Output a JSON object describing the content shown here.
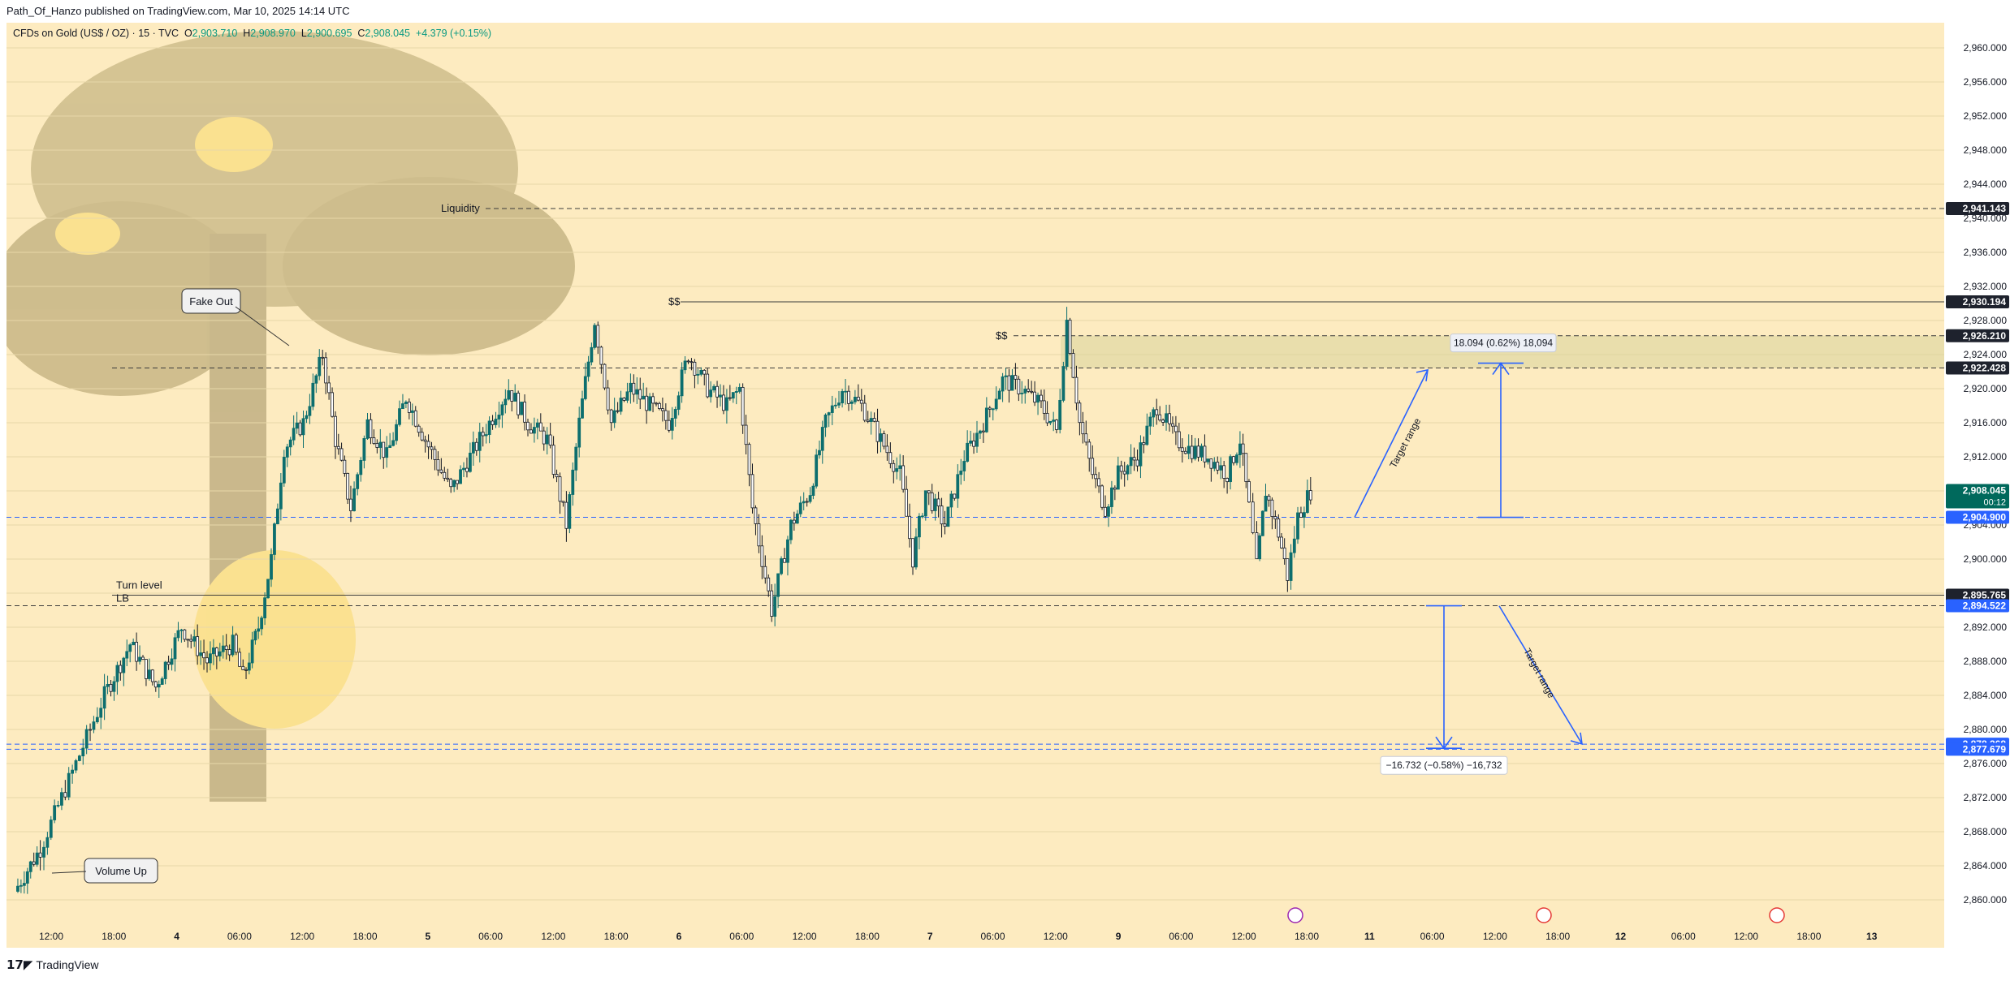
{
  "header": {
    "published": "Path_Of_Hanzo published on TradingView.com, Mar 10, 2025 14:14 UTC"
  },
  "symbol": {
    "name": "CFDs on Gold (US$ / OZ) · 15 · TVC",
    "open_label": "O",
    "open": "2,903.710",
    "high_label": "H",
    "high": "2,908.970",
    "low_label": "L",
    "low": "2,900.695",
    "close_label": "C",
    "close": "2,908.045",
    "change": "+4.379 (+0.15%)"
  },
  "colors": {
    "background": "#fdebc0",
    "up": "#0d6e6e",
    "down": "#131722",
    "accent_blue": "#2962ff",
    "last_price": "#00695c"
  },
  "footer": {
    "brand": "TradingView"
  },
  "chart_data": {
    "type": "candlestick",
    "y_axis": {
      "min": 2858,
      "max": 2962,
      "ticks": [
        "2,960.000",
        "2,956.000",
        "2,952.000",
        "2,948.000",
        "2,944.000",
        "2,940.000",
        "2,936.000",
        "2,932.000",
        "2,928.000",
        "2,924.000",
        "2,920.000",
        "2,916.000",
        "2,912.000",
        "2,908.000",
        "2,904.000",
        "2,900.000",
        "2,896.000",
        "2,892.000",
        "2,888.000",
        "2,884.000",
        "2,880.000",
        "2,876.000",
        "2,872.000",
        "2,868.000",
        "2,864.000",
        "2,860.000"
      ],
      "tick_values": [
        2960,
        2956,
        2952,
        2948,
        2944,
        2940,
        2936,
        2932,
        2928,
        2924,
        2920,
        2916,
        2912,
        2908,
        2904,
        2900,
        2896,
        2892,
        2888,
        2884,
        2880,
        2876,
        2872,
        2868,
        2864,
        2860
      ]
    },
    "x_axis": {
      "ticks": [
        "12:00",
        "18:00",
        "4",
        "06:00",
        "12:00",
        "18:00",
        "5",
        "06:00",
        "12:00",
        "18:00",
        "6",
        "06:00",
        "12:00",
        "18:00",
        "7",
        "06:00",
        "12:00",
        "9",
        "06:00",
        "12:00",
        "18:00",
        "11",
        "06:00",
        "12:00",
        "18:00",
        "12",
        "06:00",
        "12:00",
        "18:00",
        "13"
      ]
    },
    "price_labels": [
      {
        "text": "2,941.143",
        "value": 2941.143,
        "style": "dark"
      },
      {
        "text": "2,930.194",
        "value": 2930.194,
        "style": "dark"
      },
      {
        "text": "2,926.210",
        "value": 2926.21,
        "style": "dark"
      },
      {
        "text": "2,922.428",
        "value": 2922.428,
        "style": "dark"
      },
      {
        "text": "2,908.045",
        "value": 2908.045,
        "style": "last",
        "countdown": "00:12"
      },
      {
        "text": "2,904.900",
        "value": 2904.9,
        "style": "blue"
      },
      {
        "text": "2,895.765",
        "value": 2895.765,
        "style": "dark"
      },
      {
        "text": "2,894.522",
        "value": 2894.522,
        "style": "blue"
      },
      {
        "text": "2,878.268",
        "value": 2878.268,
        "style": "blue"
      },
      {
        "text": "2,877.679",
        "value": 2877.679,
        "style": "blue"
      }
    ],
    "levels": [
      {
        "name": "Liquidity",
        "value": 2941.143,
        "style": "dashed"
      },
      {
        "name": "$$",
        "value": 2930.194,
        "style": "solid"
      },
      {
        "name": "$$",
        "value": 2926.21,
        "style": "dashed"
      },
      {
        "name": "",
        "value": 2922.428,
        "style": "dashed"
      },
      {
        "name": "",
        "value": 2904.9,
        "style": "dashed-blue"
      },
      {
        "name": "Turn level",
        "value": 2895.765,
        "style": "solid"
      },
      {
        "name": "LB",
        "value": 2894.522,
        "style": "dashed"
      },
      {
        "name": "",
        "value": 2878.268,
        "style": "dashed-blue"
      },
      {
        "name": "",
        "value": 2877.679,
        "style": "dashed-blue"
      }
    ],
    "zone": {
      "from": 2922.428,
      "to": 2926.21
    },
    "measurements": [
      {
        "label": "18.094 (0.62%) 18,094",
        "from": 2904.9,
        "to": 2922.994
      },
      {
        "label": "−16.732 (−0.58%) −16,732",
        "from": 2894.522,
        "to": 2877.79
      }
    ],
    "annotations": {
      "target_up": "Target range",
      "target_down": "Target range",
      "fake_out": "Fake Out",
      "volume_up": "Volume Up"
    },
    "series": [
      {
        "name": "XAUUSD",
        "anchors": [
          [
            0,
            2861
          ],
          [
            20,
            2866
          ],
          [
            45,
            2875
          ],
          [
            70,
            2884
          ],
          [
            90,
            2890
          ],
          [
            110,
            2885
          ],
          [
            130,
            2892
          ],
          [
            150,
            2888
          ],
          [
            170,
            2890
          ],
          [
            178,
            2886
          ],
          [
            190,
            2892
          ],
          [
            200,
            2900
          ],
          [
            210,
            2913
          ],
          [
            225,
            2916
          ],
          [
            240,
            2924
          ],
          [
            250,
            2914
          ],
          [
            262,
            2906
          ],
          [
            275,
            2916
          ],
          [
            290,
            2912
          ],
          [
            305,
            2919
          ],
          [
            320,
            2914
          ],
          [
            340,
            2908
          ],
          [
            355,
            2912
          ],
          [
            370,
            2916
          ],
          [
            385,
            2920
          ],
          [
            400,
            2916
          ],
          [
            415,
            2914
          ],
          [
            430,
            2904
          ],
          [
            440,
            2916
          ],
          [
            452,
            2928
          ],
          [
            465,
            2916
          ],
          [
            480,
            2920
          ],
          [
            495,
            2918
          ],
          [
            510,
            2916
          ],
          [
            525,
            2924
          ],
          [
            540,
            2920
          ],
          [
            555,
            2918
          ],
          [
            565,
            2920
          ],
          [
            575,
            2906
          ],
          [
            590,
            2894
          ],
          [
            605,
            2904
          ],
          [
            620,
            2908
          ],
          [
            632,
            2916
          ],
          [
            645,
            2920
          ],
          [
            660,
            2918
          ],
          [
            675,
            2914
          ],
          [
            690,
            2910
          ],
          [
            700,
            2900
          ],
          [
            710,
            2908
          ],
          [
            725,
            2904
          ],
          [
            740,
            2912
          ],
          [
            755,
            2916
          ],
          [
            770,
            2921
          ],
          [
            785,
            2920
          ],
          [
            800,
            2918
          ],
          [
            812,
            2915
          ],
          [
            820,
            2928
          ],
          [
            830,
            2916
          ],
          [
            840,
            2910
          ],
          [
            850,
            2906
          ],
          [
            860,
            2910
          ],
          [
            875,
            2912
          ],
          [
            890,
            2918
          ],
          [
            905,
            2914
          ],
          [
            915,
            2913
          ],
          [
            930,
            2912
          ],
          [
            945,
            2910
          ],
          [
            955,
            2914
          ],
          [
            962,
            2906
          ],
          [
            968,
            2899
          ],
          [
            975,
            2908
          ],
          [
            985,
            2903
          ],
          [
            992,
            2898
          ],
          [
            1000,
            2905
          ],
          [
            1010,
            2908
          ]
        ]
      }
    ]
  }
}
